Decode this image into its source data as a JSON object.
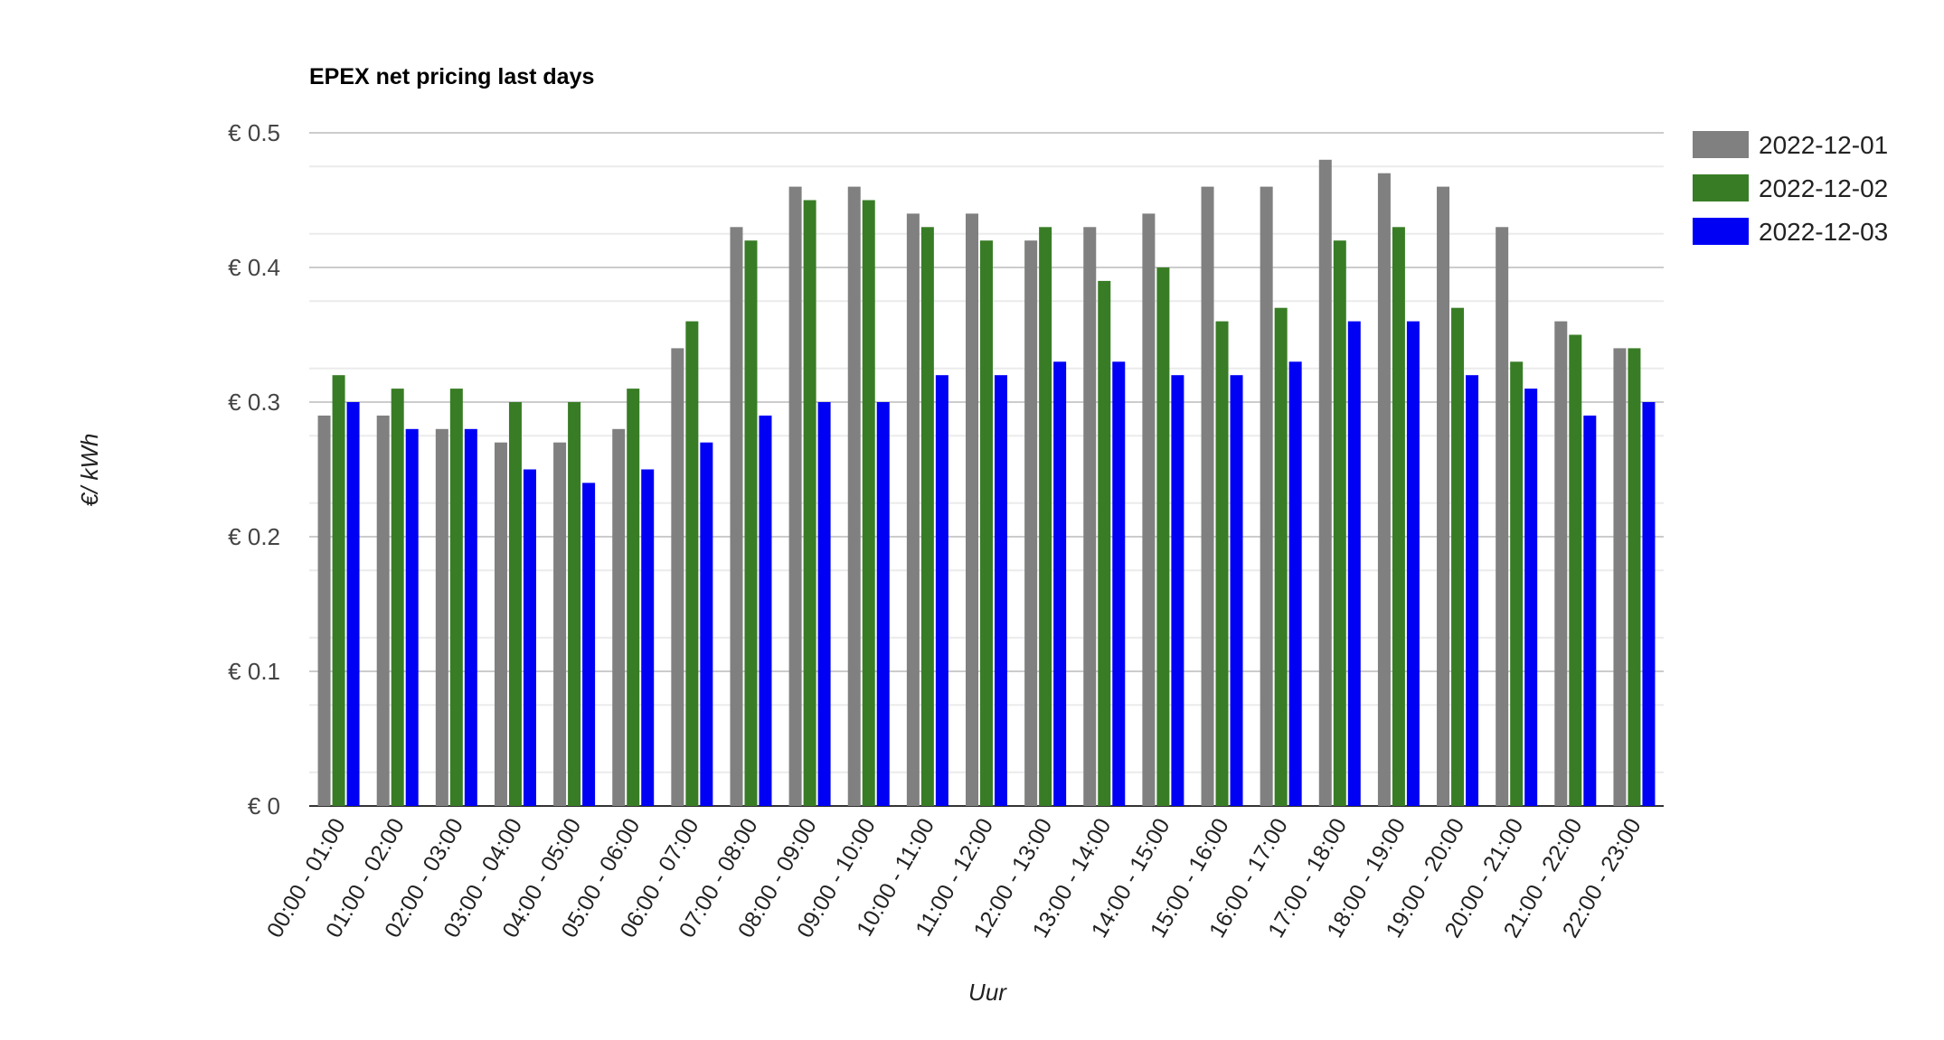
{
  "chart_data": {
    "type": "bar",
    "title": "EPEX net pricing last days",
    "xlabel": "Uur",
    "ylabel": "€/ kWh",
    "ylim": [
      0,
      0.5
    ],
    "yticks": [
      "€ 0",
      "€ 0.1",
      "€ 0.2",
      "€ 0.3",
      "€ 0.4",
      "€ 0.5"
    ],
    "ytick_values": [
      0,
      0.1,
      0.2,
      0.3,
      0.4,
      0.5
    ],
    "grid": true,
    "legend_position": "right",
    "categories": [
      "00:00 - 01:00",
      "01:00 - 02:00",
      "02:00 - 03:00",
      "03:00 - 04:00",
      "04:00 - 05:00",
      "05:00 - 06:00",
      "06:00 - 07:00",
      "07:00 - 08:00",
      "08:00 - 09:00",
      "09:00 - 10:00",
      "10:00 - 11:00",
      "11:00 - 12:00",
      "12:00 - 13:00",
      "13:00 - 14:00",
      "14:00 - 15:00",
      "15:00 - 16:00",
      "16:00 - 17:00",
      "17:00 - 18:00",
      "18:00 - 19:00",
      "19:00 - 20:00",
      "20:00 - 21:00",
      "21:00 - 22:00",
      "22:00 - 23:00"
    ],
    "series": [
      {
        "name": "2022-12-01",
        "color": "#808080",
        "values": [
          0.29,
          0.29,
          0.28,
          0.27,
          0.27,
          0.28,
          0.34,
          0.43,
          0.46,
          0.46,
          0.44,
          0.44,
          0.42,
          0.43,
          0.44,
          0.46,
          0.46,
          0.48,
          0.47,
          0.46,
          0.43,
          0.36,
          0.34
        ]
      },
      {
        "name": "2022-12-02",
        "color": "#387d25",
        "values": [
          0.32,
          0.31,
          0.31,
          0.3,
          0.3,
          0.31,
          0.36,
          0.42,
          0.45,
          0.45,
          0.43,
          0.42,
          0.43,
          0.39,
          0.4,
          0.36,
          0.37,
          0.42,
          0.43,
          0.37,
          0.33,
          0.35,
          0.34
        ]
      },
      {
        "name": "2022-12-03",
        "color": "#0000f5",
        "values": [
          0.3,
          0.28,
          0.28,
          0.25,
          0.24,
          0.25,
          0.27,
          0.29,
          0.3,
          0.3,
          0.32,
          0.32,
          0.33,
          0.33,
          0.32,
          0.32,
          0.33,
          0.36,
          0.36,
          0.32,
          0.31,
          0.29,
          0.3
        ]
      }
    ]
  }
}
